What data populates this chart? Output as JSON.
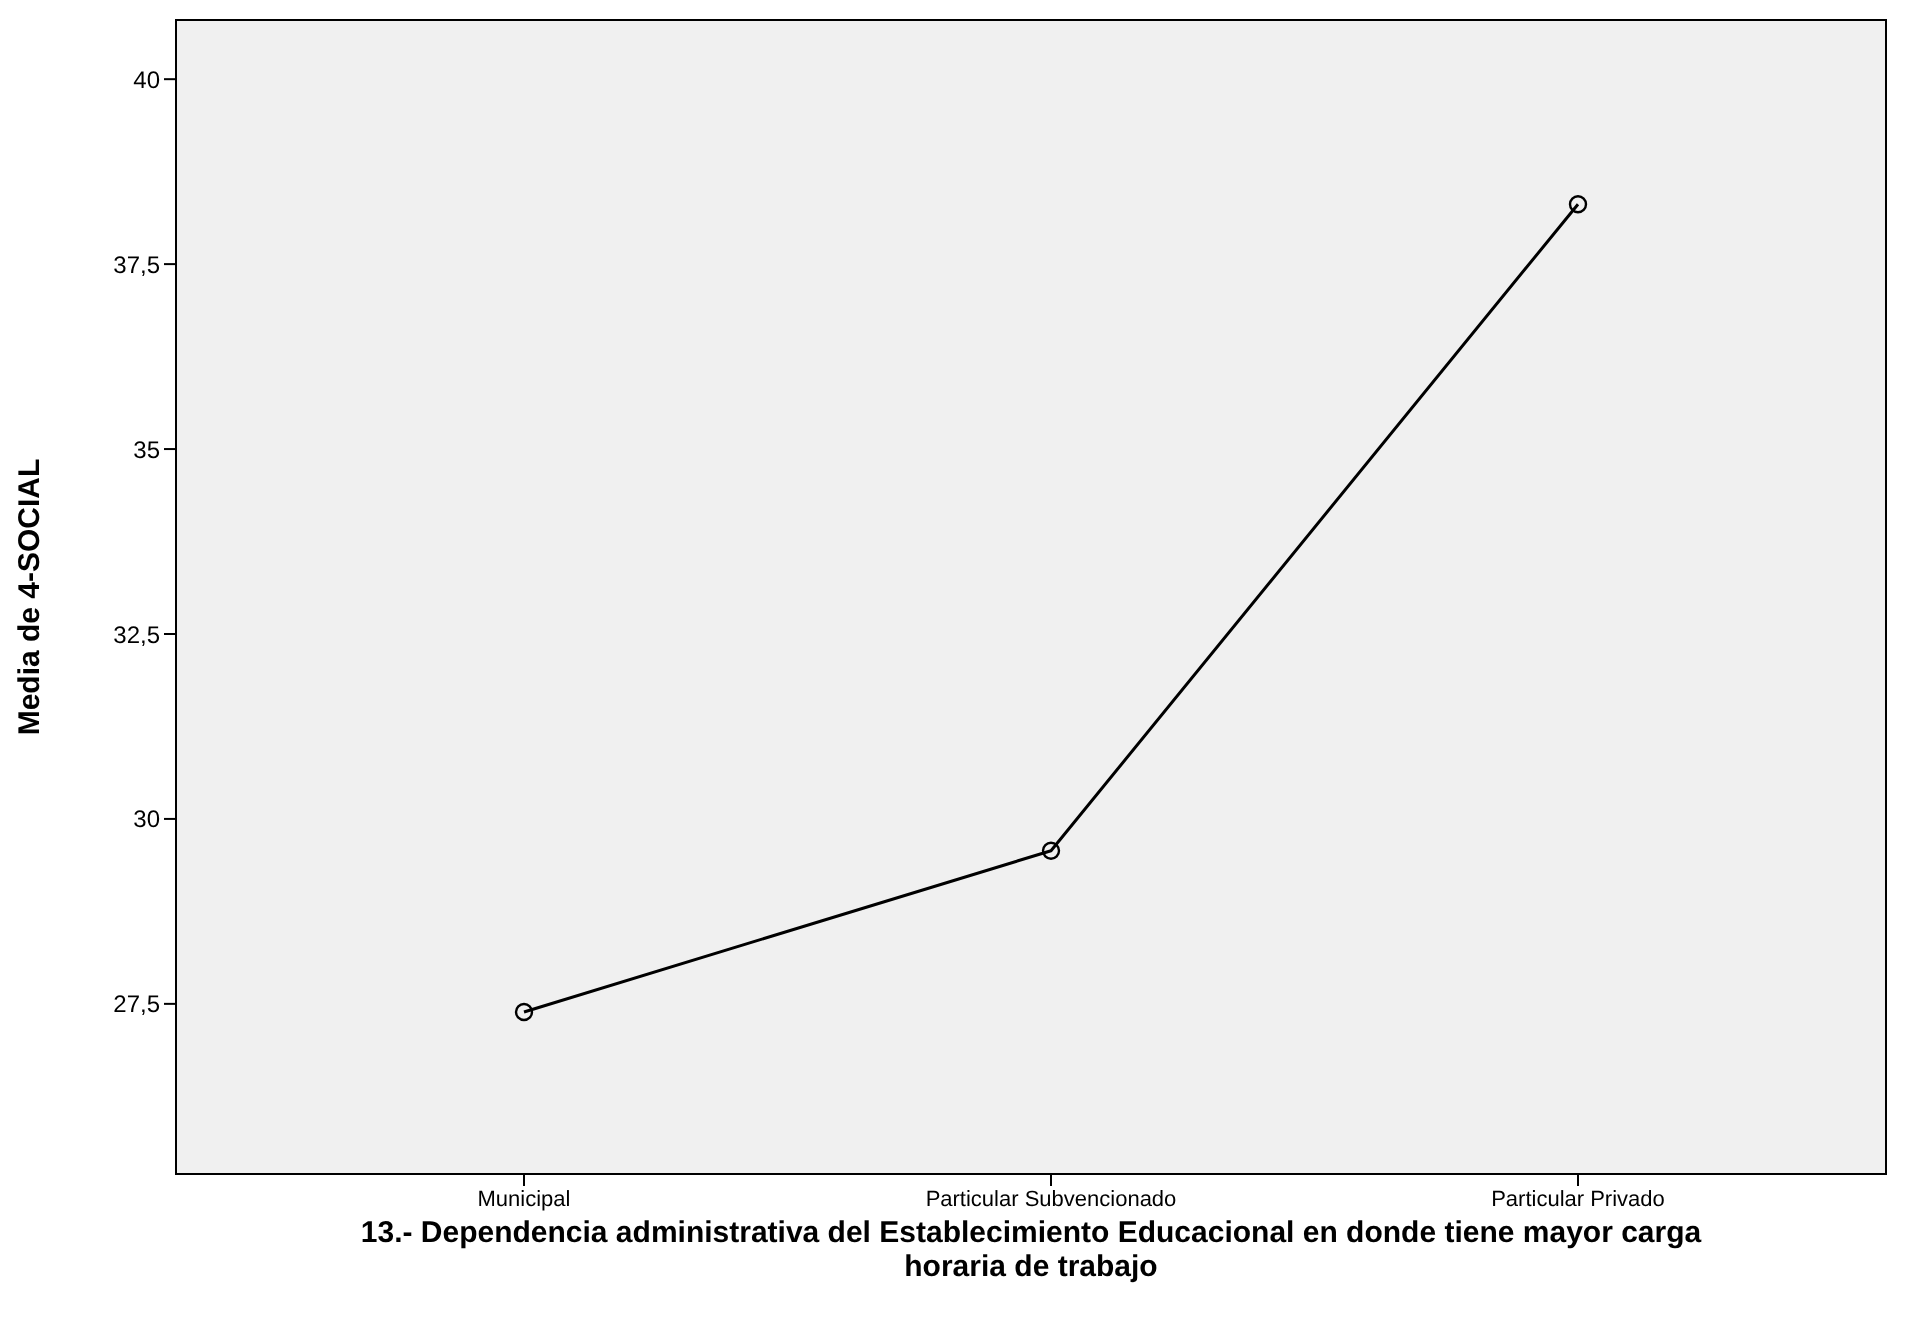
{
  "chart_data": {
    "type": "line",
    "xlabel": "13.- Dependencia administrativa del Establecimiento Educacional en donde tiene mayor carga horaria de trabajo",
    "ylabel": "Media de 4-SOCIAL",
    "categories": [
      "Municipal",
      "Particular Subvencionado",
      "Particular Privado"
    ],
    "series": [
      {
        "color": "#000000",
        "values": [
          27.39,
          29.57,
          38.31
        ]
      }
    ],
    "ylim": [
      25.2,
      40.8
    ],
    "yticks": [
      {
        "value": 27.5,
        "label": "27,5"
      },
      {
        "value": 30,
        "label": "30"
      },
      {
        "value": 32.5,
        "label": "32,5"
      },
      {
        "value": 35,
        "label": "35"
      },
      {
        "value": 37.5,
        "label": "37,5"
      },
      {
        "value": 40,
        "label": "40"
      }
    ],
    "legend": false,
    "marker": "circle",
    "line_style": "solid"
  }
}
